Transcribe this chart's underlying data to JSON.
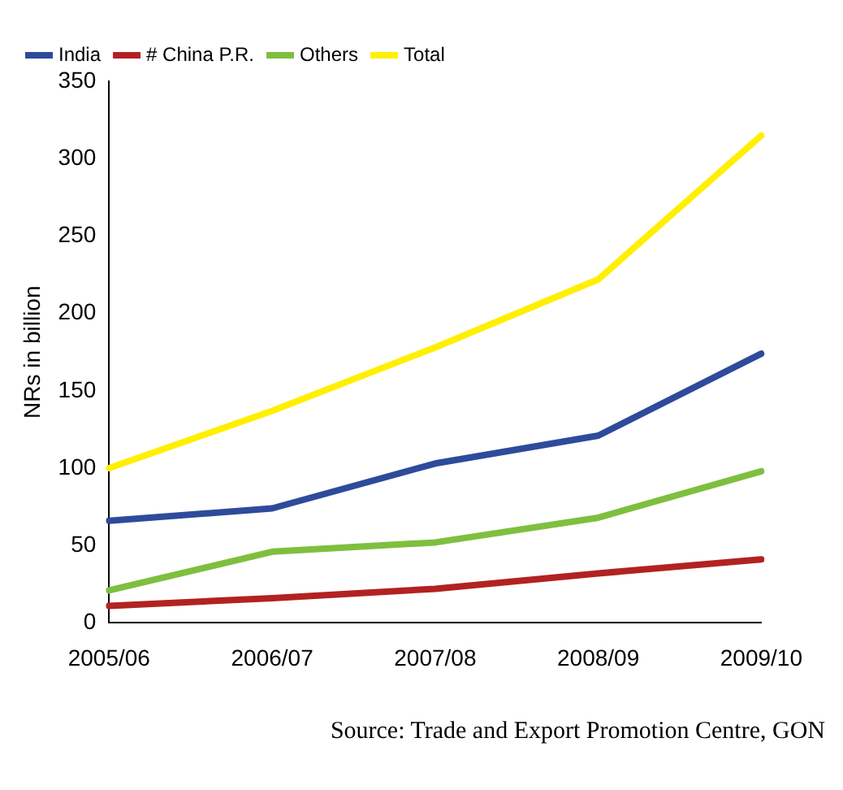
{
  "chart_data": {
    "type": "line",
    "ylabel": "NRs in billion",
    "categories": [
      "2005/06",
      "2006/07",
      "2007/08",
      "2008/09",
      "2009/10"
    ],
    "series": [
      {
        "name": "India",
        "color": "#2e4b9b",
        "values": [
          66,
          74,
          103,
          121,
          174
        ]
      },
      {
        "name": "# China P.R.",
        "color": "#b22222",
        "values": [
          11,
          16,
          22,
          32,
          41
        ]
      },
      {
        "name": "Others",
        "color": "#7fbf3f",
        "values": [
          21,
          46,
          52,
          68,
          98
        ]
      },
      {
        "name": "Total",
        "color": "#ffef00",
        "values": [
          100,
          137,
          178,
          222,
          315
        ]
      }
    ],
    "ylim": [
      0,
      350
    ],
    "yticks": [
      0,
      50,
      100,
      150,
      200,
      250,
      300,
      350
    ],
    "grid": false,
    "legend": "top left",
    "marker": "none",
    "line_style": "solid",
    "annotations": [
      "Source: Trade and Export Promotion Centre, GON"
    ]
  }
}
